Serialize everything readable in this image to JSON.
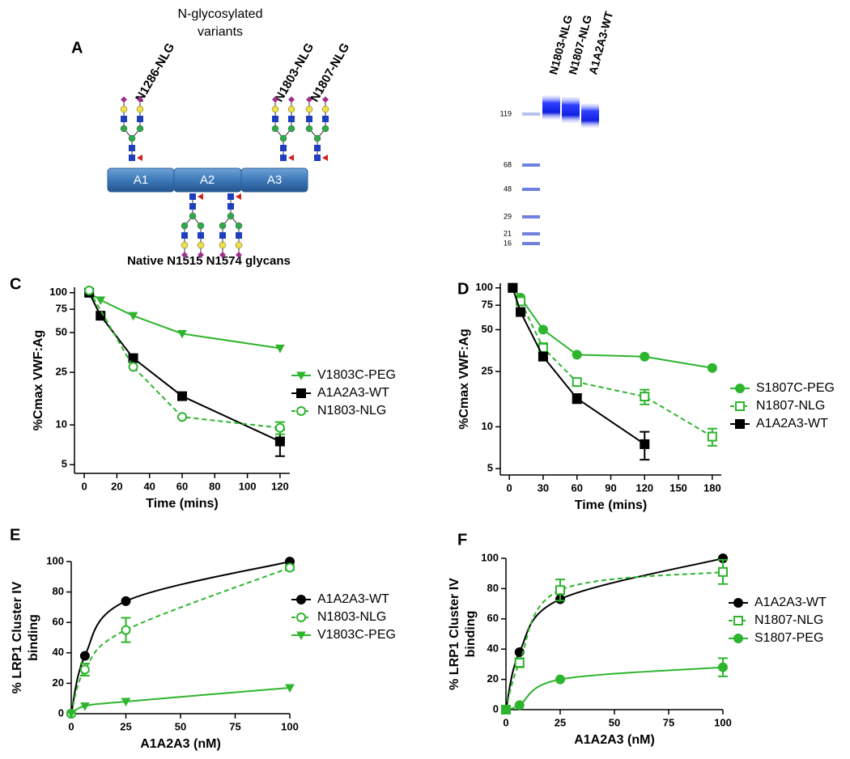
{
  "panel_a": {
    "label": "A",
    "title_lines": [
      "N-glycosylated",
      "variants"
    ],
    "variant_labels": [
      "N1286-NLG",
      "N1803-NLG",
      "N1807-NLG"
    ],
    "domains": [
      "A1",
      "A2",
      "A3"
    ],
    "native_label": "Native N1515 N1574 glycans",
    "gel_lanes": [
      "N1803-NLG",
      "N1807-NLG",
      "A1A2A3-WT"
    ],
    "ladder": [
      119,
      68,
      48,
      29,
      21,
      16
    ]
  },
  "chart_data": [
    {
      "type": "line",
      "panel": "C",
      "xlabel": "Time (mins)",
      "ylabel": [
        "%Cmax VWF:Ag"
      ],
      "log_scale": true,
      "xlim": [
        -6,
        126
      ],
      "xticks": [
        0,
        20,
        40,
        60,
        80,
        100,
        120
      ],
      "ylim": [
        4.3,
        110
      ],
      "yticks": [
        5,
        10,
        25,
        50,
        75,
        100
      ],
      "legend": "right",
      "series": [
        {
          "name": "V1803C-PEG",
          "color": "#2db52d",
          "marker": "triangle-down",
          "linestyle": "solid",
          "x": [
            3,
            10,
            30,
            60,
            120
          ],
          "values": [
            100,
            88,
            67,
            49,
            38
          ]
        },
        {
          "name": "A1A2A3-WT",
          "color": "#000000",
          "marker": "square",
          "linestyle": "solid",
          "x": [
            3,
            10,
            30,
            60,
            120
          ],
          "values": [
            100,
            67,
            32,
            16.5,
            7.5
          ],
          "errors": [
            null,
            null,
            1.5,
            1,
            1.7
          ]
        },
        {
          "name": "N1803-NLG",
          "color": "#2db52d",
          "marker": "open-circle",
          "linestyle": "dashed",
          "x": [
            3,
            30,
            60,
            120
          ],
          "values": [
            104,
            27.5,
            11.5,
            9.5
          ],
          "errors": [
            null,
            null,
            null,
            1
          ]
        }
      ]
    },
    {
      "type": "line",
      "panel": "D",
      "xlabel": "Time (mins)",
      "ylabel": [
        "%Cmax VWF:Ag"
      ],
      "log_scale": true,
      "xlim": [
        -8,
        188
      ],
      "xticks": [
        0,
        30,
        60,
        90,
        120,
        150,
        180
      ],
      "ylim": [
        4.5,
        108
      ],
      "yticks": [
        5,
        10,
        25,
        50,
        75,
        100
      ],
      "legend": "right",
      "series": [
        {
          "name": "S1807C-PEG",
          "color": "#2db52d",
          "marker": "circle",
          "linestyle": "solid",
          "x": [
            3,
            10,
            30,
            60,
            120,
            180
          ],
          "values": [
            100,
            85,
            50,
            33,
            32,
            26.5
          ]
        },
        {
          "name": "N1807-NLG",
          "color": "#2db52d",
          "marker": "open-square",
          "linestyle": "dashed",
          "x": [
            3,
            10,
            30,
            60,
            120,
            180
          ],
          "values": [
            100,
            80,
            37,
            21,
            16.5,
            8.5
          ],
          "errors": [
            null,
            null,
            3,
            null,
            2,
            1.2
          ]
        },
        {
          "name": "A1A2A3-WT",
          "color": "#000000",
          "marker": "square",
          "linestyle": "solid",
          "x": [
            3,
            10,
            30,
            60,
            120
          ],
          "values": [
            100,
            67,
            32,
            16,
            7.5
          ],
          "errors": [
            null,
            null,
            2,
            1.2,
            1.7
          ]
        }
      ]
    },
    {
      "type": "line",
      "panel": "E",
      "xlabel": "A1A2A3 (nM)",
      "ylabel": [
        "% LRP1 Cluster IV",
        "binding"
      ],
      "log_scale": false,
      "smooth": true,
      "xlim": [
        0,
        100
      ],
      "xticks": [
        0,
        25,
        50,
        75,
        100
      ],
      "ylim": [
        0,
        100
      ],
      "yticks": [
        0,
        20,
        40,
        60,
        80,
        100
      ],
      "legend": "right",
      "series": [
        {
          "name": "A1A2A3-WT",
          "color": "#000000",
          "marker": "circle",
          "linestyle": "solid",
          "x": [
            0,
            6.25,
            25,
            100
          ],
          "values": [
            0,
            38,
            74,
            100
          ]
        },
        {
          "name": "N1803-NLG",
          "color": "#2db52d",
          "marker": "open-circle",
          "linestyle": "dashed",
          "x": [
            0,
            6.25,
            25,
            100
          ],
          "values": [
            0,
            29,
            55,
            96
          ],
          "errors": [
            null,
            4,
            8,
            1.5
          ]
        },
        {
          "name": "V1803C-PEG",
          "color": "#2db52d",
          "marker": "triangle-down",
          "linestyle": "solid",
          "x": [
            0,
            6.25,
            25,
            100
          ],
          "values": [
            0,
            5,
            8,
            17
          ]
        }
      ]
    },
    {
      "type": "line",
      "panel": "F",
      "xlabel": "A1A2A3 (nM)",
      "ylabel": [
        "% LRP1 Cluster IV",
        "binding"
      ],
      "log_scale": false,
      "smooth": true,
      "xlim": [
        0,
        100
      ],
      "xticks": [
        0,
        25,
        50,
        75,
        100
      ],
      "ylim": [
        0,
        100
      ],
      "yticks": [
        0,
        20,
        40,
        60,
        80,
        100
      ],
      "legend": "right",
      "series": [
        {
          "name": "A1A2A3-WT",
          "color": "#000000",
          "marker": "circle",
          "linestyle": "solid",
          "x": [
            0,
            6.25,
            25,
            100
          ],
          "values": [
            0,
            38,
            73,
            100
          ]
        },
        {
          "name": "N1807-NLG",
          "color": "#2db52d",
          "marker": "open-square",
          "linestyle": "dashed",
          "x": [
            0,
            6.25,
            25,
            100
          ],
          "values": [
            0,
            31,
            79,
            91
          ],
          "errors": [
            null,
            3,
            7,
            8
          ]
        },
        {
          "name": "S1807-PEG",
          "color": "#2db52d",
          "marker": "circle",
          "linestyle": "solid",
          "x": [
            0,
            6.25,
            25,
            100
          ],
          "values": [
            0,
            3,
            20,
            28
          ],
          "errors": [
            null,
            null,
            null,
            6
          ]
        }
      ]
    }
  ]
}
